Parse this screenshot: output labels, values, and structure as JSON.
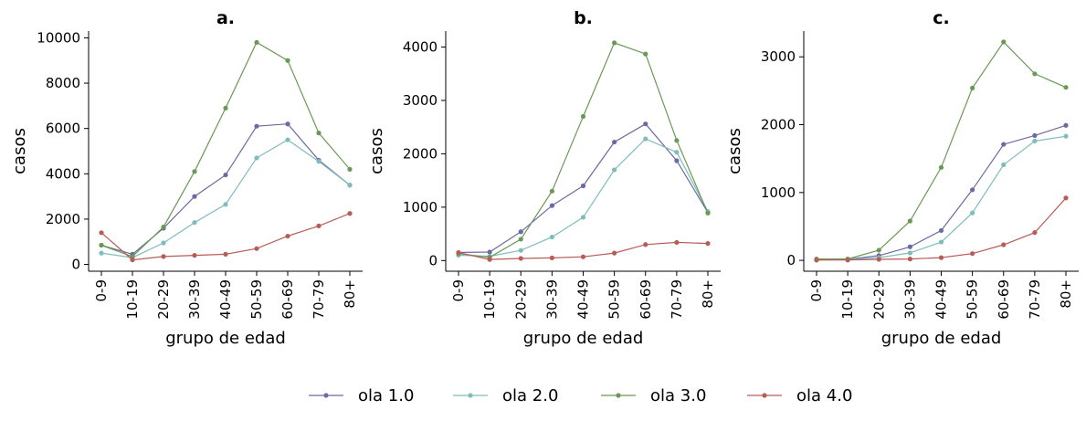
{
  "chart_data": [
    {
      "type": "line",
      "title": "a.",
      "xlabel": "grupo de edad",
      "ylabel": "casos",
      "categories": [
        "0-9",
        "10-19",
        "20-29",
        "30-39",
        "40-49",
        "50-59",
        "60-69",
        "70-79",
        "80+"
      ],
      "ylim": [
        -300,
        10300
      ],
      "yticks": [
        0,
        2000,
        4000,
        6000,
        8000,
        10000
      ],
      "series": [
        {
          "name": "ola 1.0",
          "color": "#6b6aa3",
          "values": [
            850,
            450,
            1600,
            3000,
            3950,
            6100,
            6200,
            4600,
            3500
          ]
        },
        {
          "name": "ola 2.0",
          "color": "#7fbcbc",
          "values": [
            500,
            300,
            950,
            1850,
            2650,
            4700,
            5500,
            4550,
            3500
          ]
        },
        {
          "name": "ola 3.0",
          "color": "#6a9955",
          "values": [
            850,
            350,
            1650,
            4100,
            6900,
            9800,
            9000,
            5800,
            4200
          ]
        },
        {
          "name": "ola 4.0",
          "color": "#b85c57",
          "values": [
            1400,
            200,
            350,
            400,
            450,
            700,
            1250,
            1700,
            2250
          ]
        }
      ]
    },
    {
      "type": "line",
      "title": "b.",
      "xlabel": "grupo de edad",
      "ylabel": "casos",
      "categories": [
        "0-9",
        "10-19",
        "20-29",
        "30-39",
        "40-49",
        "50-59",
        "60-69",
        "70-79",
        "80+"
      ],
      "ylim": [
        -200,
        4300
      ],
      "yticks": [
        0,
        1000,
        2000,
        3000,
        4000
      ],
      "series": [
        {
          "name": "ola 1.0",
          "color": "#6b6aa3",
          "values": [
            150,
            160,
            540,
            1030,
            1400,
            2220,
            2560,
            1870,
            900
          ]
        },
        {
          "name": "ola 2.0",
          "color": "#7fbcbc",
          "values": [
            100,
            80,
            190,
            440,
            810,
            1700,
            2280,
            2030,
            920
          ]
        },
        {
          "name": "ola 3.0",
          "color": "#6a9955",
          "values": [
            130,
            60,
            400,
            1300,
            2700,
            4080,
            3870,
            2250,
            890
          ]
        },
        {
          "name": "ola 4.0",
          "color": "#b85c57",
          "values": [
            150,
            20,
            40,
            50,
            70,
            140,
            300,
            340,
            320
          ]
        }
      ]
    },
    {
      "type": "line",
      "title": "c.",
      "xlabel": "grupo de edad",
      "ylabel": "casos",
      "categories": [
        "0-9",
        "10-19",
        "20-29",
        "30-39",
        "40-49",
        "50-59",
        "60-69",
        "70-79",
        "80+"
      ],
      "ylim": [
        -160,
        3380
      ],
      "yticks": [
        0,
        1000,
        2000,
        3000
      ],
      "series": [
        {
          "name": "ola 1.0",
          "color": "#6b6aa3",
          "values": [
            10,
            15,
            70,
            200,
            440,
            1040,
            1710,
            1840,
            1990
          ]
        },
        {
          "name": "ola 2.0",
          "color": "#7fbcbc",
          "values": [
            5,
            10,
            40,
            110,
            270,
            700,
            1410,
            1760,
            1830
          ]
        },
        {
          "name": "ola 3.0",
          "color": "#6a9955",
          "values": [
            20,
            20,
            150,
            580,
            1370,
            2540,
            3220,
            2750,
            2550
          ]
        },
        {
          "name": "ola 4.0",
          "color": "#b85c57",
          "values": [
            5,
            5,
            15,
            20,
            40,
            100,
            230,
            410,
            920
          ]
        }
      ]
    }
  ],
  "legend": {
    "placement": "bottom-center",
    "items": [
      {
        "label": "ola 1.0",
        "color": "#6b6aa3"
      },
      {
        "label": "ola 2.0",
        "color": "#7fbcbc"
      },
      {
        "label": "ola 3.0",
        "color": "#6a9955"
      },
      {
        "label": "ola 4.0",
        "color": "#b85c57"
      }
    ]
  }
}
